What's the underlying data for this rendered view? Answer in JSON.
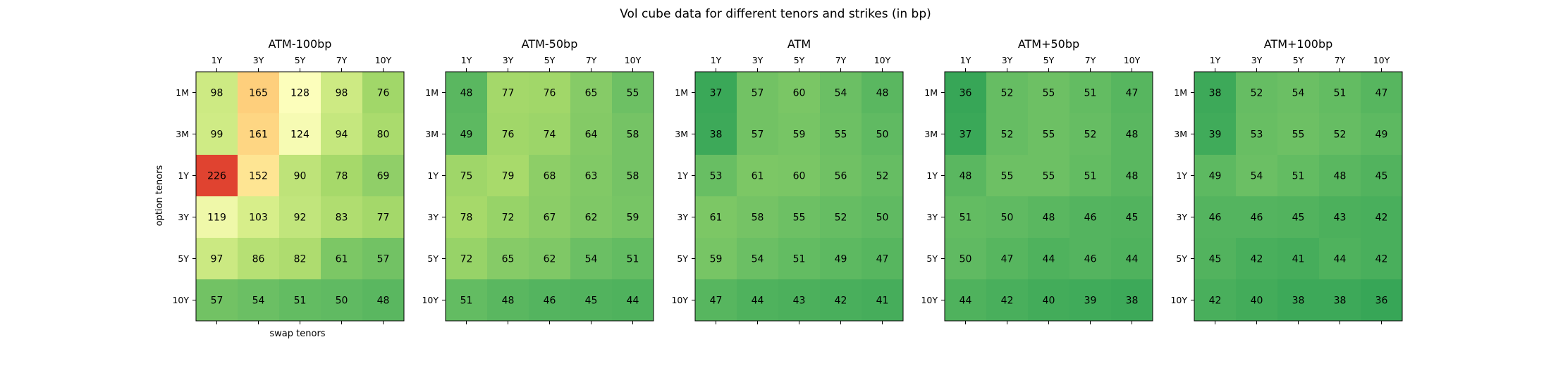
{
  "chart_data": {
    "type": "heatmap",
    "title": "Vol cube data for different tenors and strikes (in bp)",
    "xlabel": "swap tenors",
    "ylabel": "option tenors",
    "x_categories": [
      "1Y",
      "3Y",
      "5Y",
      "7Y",
      "10Y"
    ],
    "y_categories": [
      "1M",
      "3M",
      "1Y",
      "3Y",
      "5Y",
      "10Y"
    ],
    "colormap": "RdYlGn_r",
    "value_range": [
      0,
      260
    ],
    "panels": [
      {
        "title": "ATM-100bp",
        "values": [
          [
            98,
            165,
            128,
            98,
            76
          ],
          [
            99,
            161,
            124,
            94,
            80
          ],
          [
            226,
            152,
            90,
            78,
            69
          ],
          [
            119,
            103,
            92,
            83,
            77
          ],
          [
            97,
            86,
            82,
            61,
            57
          ],
          [
            57,
            54,
            51,
            50,
            48
          ]
        ]
      },
      {
        "title": "ATM-50bp",
        "values": [
          [
            48,
            77,
            76,
            65,
            55
          ],
          [
            49,
            76,
            74,
            64,
            58
          ],
          [
            75,
            79,
            68,
            63,
            58
          ],
          [
            78,
            72,
            67,
            62,
            59
          ],
          [
            72,
            65,
            62,
            54,
            51
          ],
          [
            51,
            48,
            46,
            45,
            44
          ]
        ]
      },
      {
        "title": "ATM",
        "values": [
          [
            37,
            57,
            60,
            54,
            48
          ],
          [
            38,
            57,
            59,
            55,
            50
          ],
          [
            53,
            61,
            60,
            56,
            52
          ],
          [
            61,
            58,
            55,
            52,
            50
          ],
          [
            59,
            54,
            51,
            49,
            47
          ],
          [
            47,
            44,
            43,
            42,
            41
          ]
        ]
      },
      {
        "title": "ATM+50bp",
        "values": [
          [
            36,
            52,
            55,
            51,
            47
          ],
          [
            37,
            52,
            55,
            52,
            48
          ],
          [
            48,
            55,
            55,
            51,
            48
          ],
          [
            51,
            50,
            48,
            46,
            45
          ],
          [
            50,
            47,
            44,
            46,
            44
          ],
          [
            44,
            42,
            40,
            39,
            38
          ]
        ]
      },
      {
        "title": "ATM+100bp",
        "values": [
          [
            38,
            52,
            54,
            51,
            47
          ],
          [
            39,
            53,
            55,
            52,
            49
          ],
          [
            49,
            54,
            51,
            48,
            45
          ],
          [
            46,
            46,
            45,
            43,
            42
          ],
          [
            45,
            42,
            41,
            44,
            42
          ],
          [
            42,
            40,
            38,
            38,
            36
          ]
        ]
      }
    ]
  }
}
